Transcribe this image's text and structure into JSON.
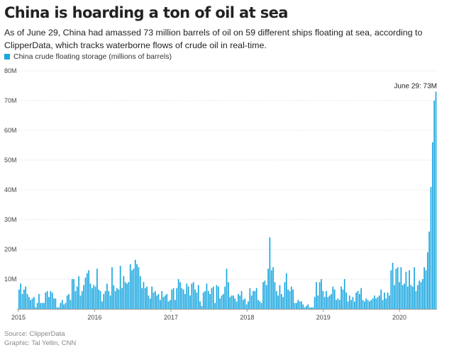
{
  "page": {
    "title": "China is hoarding a ton of oil at sea",
    "subtitle": "As of June 29, China had amassed 73 million barrels of oil on 59 different ships floating at sea, according to ClipperData, which tracks waterborne flows of crude oil in real-time.",
    "source": "Source: ClipperData",
    "credit": "Graphic: Tal Yellin, CNN"
  },
  "colors": {
    "bar": "#1aa7e0",
    "grid": "#dddddd",
    "axis": "#999999"
  },
  "chart_data": {
    "type": "bar",
    "title": "China is hoarding a ton of oil at sea",
    "legend": "China crude floating storage (millions of barrels)",
    "legend_position": "top-left",
    "x_ticks": [
      "2015",
      "2016",
      "2017",
      "2018",
      "2019",
      "2020"
    ],
    "y_ticks": [
      "10M",
      "20M",
      "30M",
      "40M",
      "50M",
      "60M",
      "70M",
      "80M"
    ],
    "ylim": [
      0,
      80
    ],
    "grid": true,
    "start": "2015-01-01",
    "end": "2020-06-29",
    "annotation": {
      "text": "June 29: 73M",
      "value": 73
    },
    "series": [
      {
        "name": "China crude floating storage (millions of barrels)",
        "values": [
          6.5,
          8.5,
          5,
          6.5,
          7.5,
          5,
          4,
          3,
          3.5,
          4,
          0.5,
          2,
          5,
          2,
          2,
          2,
          5.5,
          6,
          4,
          6,
          5.5,
          3.5,
          3.5,
          0.5,
          0.5,
          2,
          3,
          1.5,
          2,
          4.5,
          5,
          3,
          10,
          10,
          6,
          7.5,
          11,
          4.5,
          6,
          8,
          10.5,
          12,
          13,
          8.5,
          7,
          8,
          7.5,
          13.5,
          6.5,
          6,
          2.5,
          5,
          6,
          8.5,
          6,
          4.5,
          14,
          8,
          6,
          7,
          6.5,
          14.5,
          7,
          11,
          9,
          8.5,
          9,
          15,
          13,
          13.5,
          16.5,
          15,
          14,
          11,
          7,
          9,
          7,
          7.5,
          4.5,
          3.5,
          7.5,
          5.5,
          6,
          4.5,
          5,
          3,
          6,
          4,
          4.5,
          5,
          2.5,
          3,
          6.5,
          7,
          3,
          7,
          10,
          9,
          7,
          6.5,
          5,
          8.5,
          7.5,
          4.5,
          8.5,
          9,
          6.5,
          5.5,
          8,
          2.5,
          1,
          5.5,
          6,
          8.5,
          6,
          5,
          7,
          7.5,
          2,
          8,
          7.5,
          3.5,
          4.5,
          5,
          7.5,
          13.5,
          9,
          4,
          4.5,
          4.5,
          3.5,
          2.5,
          5,
          4.5,
          6,
          3,
          3.5,
          1.5,
          2.5,
          7,
          4.5,
          6,
          6,
          7,
          3,
          2.5,
          2,
          9,
          9.5,
          8,
          13.5,
          24,
          13,
          14,
          9,
          6,
          4.5,
          8,
          5,
          4,
          9,
          12,
          6.5,
          6,
          7.5,
          6.5,
          2,
          2,
          3,
          2.5,
          2.5,
          1.5,
          0.5,
          1,
          1.5,
          0.5,
          0.5,
          0.5,
          4,
          9,
          4.5,
          9,
          10,
          6,
          4,
          6,
          4,
          4.5,
          5,
          7.5,
          6.5,
          3,
          3.5,
          3,
          7.5,
          6.5,
          10,
          5.5,
          2.5,
          4.5,
          3,
          4,
          2.5,
          5.5,
          6,
          5,
          7,
          3,
          2.5,
          3.5,
          3,
          2.5,
          3,
          3.5,
          4.5,
          3.5,
          4,
          4.5,
          6.5,
          3,
          5.5,
          3.5,
          5.5,
          4.5,
          13,
          15.5,
          8,
          13.5,
          14,
          9,
          14,
          8,
          8.5,
          12.5,
          7.5,
          13,
          8,
          7.5,
          14,
          6,
          8,
          9.5,
          9,
          10,
          14,
          13,
          19,
          26,
          41,
          56,
          70,
          73
        ]
      }
    ]
  }
}
